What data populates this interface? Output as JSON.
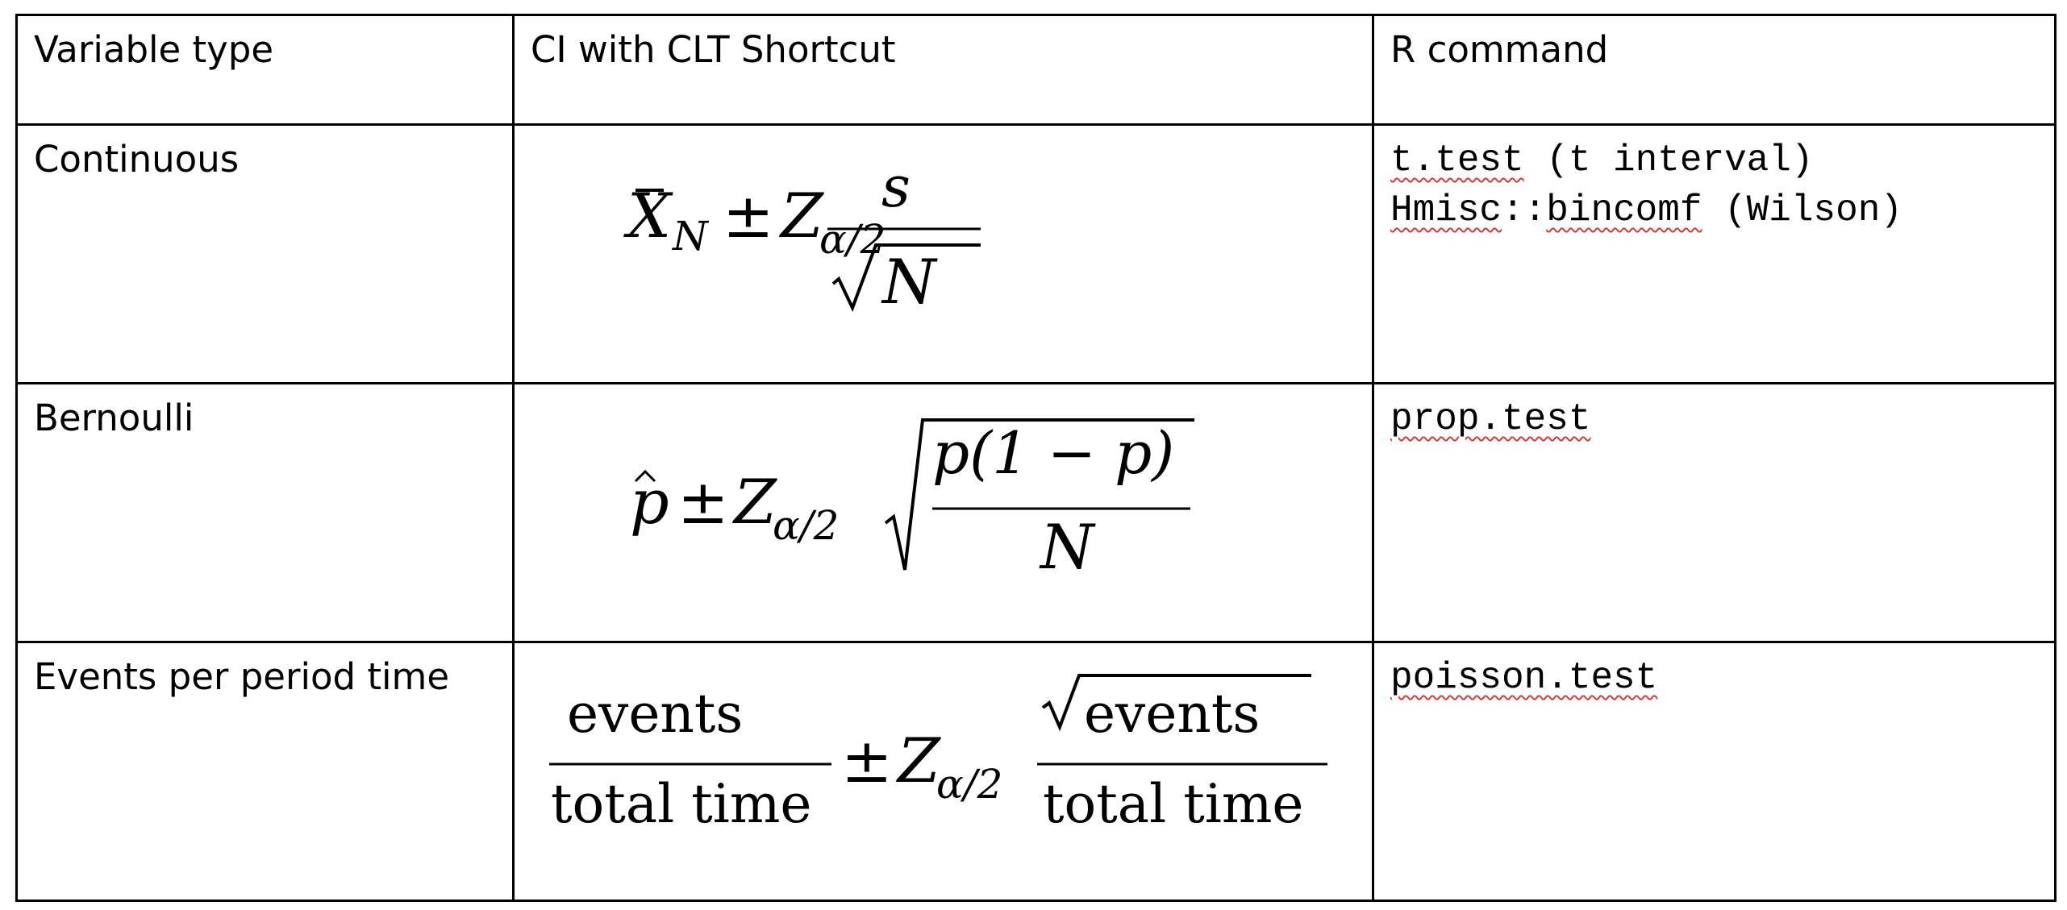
{
  "header": {
    "col1": "Variable type",
    "col2": "CI with CLT Shortcut",
    "col3": "R command"
  },
  "rows": [
    {
      "variable_type": "Continuous",
      "formula": {
        "lhs_symbol": "X",
        "lhs_subscript": "N",
        "pm": "±",
        "z": "Z",
        "z_subscript": "α/2",
        "numerator": "s",
        "denominator_radicand": "N"
      },
      "r_commands": [
        {
          "name": "t.test",
          "note": " (t interval)"
        },
        {
          "prefix": "Hmisc",
          "sep": "::",
          "name": "bincomf",
          "note": " (Wilson)"
        }
      ]
    },
    {
      "variable_type": "Bernoulli",
      "formula": {
        "lhs_symbol": "p",
        "pm": "±",
        "z": "Z",
        "z_subscript": "α/2",
        "numerator": "p(1 − p)",
        "denominator": "N"
      },
      "r_commands": [
        {
          "name": "prop.test"
        }
      ]
    },
    {
      "variable_type": "Events per period time",
      "formula": {
        "frac1_numerator": "events",
        "frac1_denominator": "total time",
        "pm": "±",
        "z": "Z",
        "z_subscript": "α/2",
        "frac2_numerator_radicand": "events",
        "frac2_denominator": "total time"
      },
      "r_commands": [
        {
          "name": "poisson.test"
        }
      ]
    }
  ]
}
